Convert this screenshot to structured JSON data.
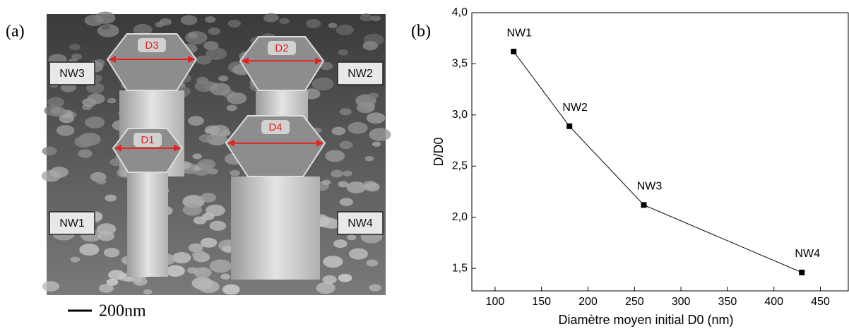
{
  "panel_a": {
    "label": "(a)",
    "wire_labels": [
      "NW1",
      "NW2",
      "NW3",
      "NW4"
    ],
    "diameter_labels": [
      "D1",
      "D2",
      "D3",
      "D4"
    ],
    "scale_bar": "200nm"
  },
  "panel_b_label": "(b)",
  "chart_data": {
    "type": "line",
    "x_label": "Diamètre moyen initial D0 (nm)",
    "y_label": "D/D0",
    "x": [
      120,
      180,
      260,
      430
    ],
    "values": [
      3.62,
      2.89,
      2.12,
      1.46
    ],
    "point_labels": [
      "NW1",
      "NW2",
      "NW3",
      "NW4"
    ],
    "color": "#000000",
    "xlim": [
      75,
      480
    ],
    "xticks": [
      100,
      150,
      200,
      250,
      300,
      350,
      400,
      450
    ],
    "ylim": [
      1.28,
      4.0
    ],
    "yticks": [
      {
        "value": 1.5,
        "label": "1,5"
      },
      {
        "value": 2.0,
        "label": "2,0"
      },
      {
        "value": 2.5,
        "label": "2,5"
      },
      {
        "value": 3.0,
        "label": "3,0"
      },
      {
        "value": 3.5,
        "label": "3,5"
      },
      {
        "value": 4.0,
        "label": "4,0"
      }
    ]
  }
}
